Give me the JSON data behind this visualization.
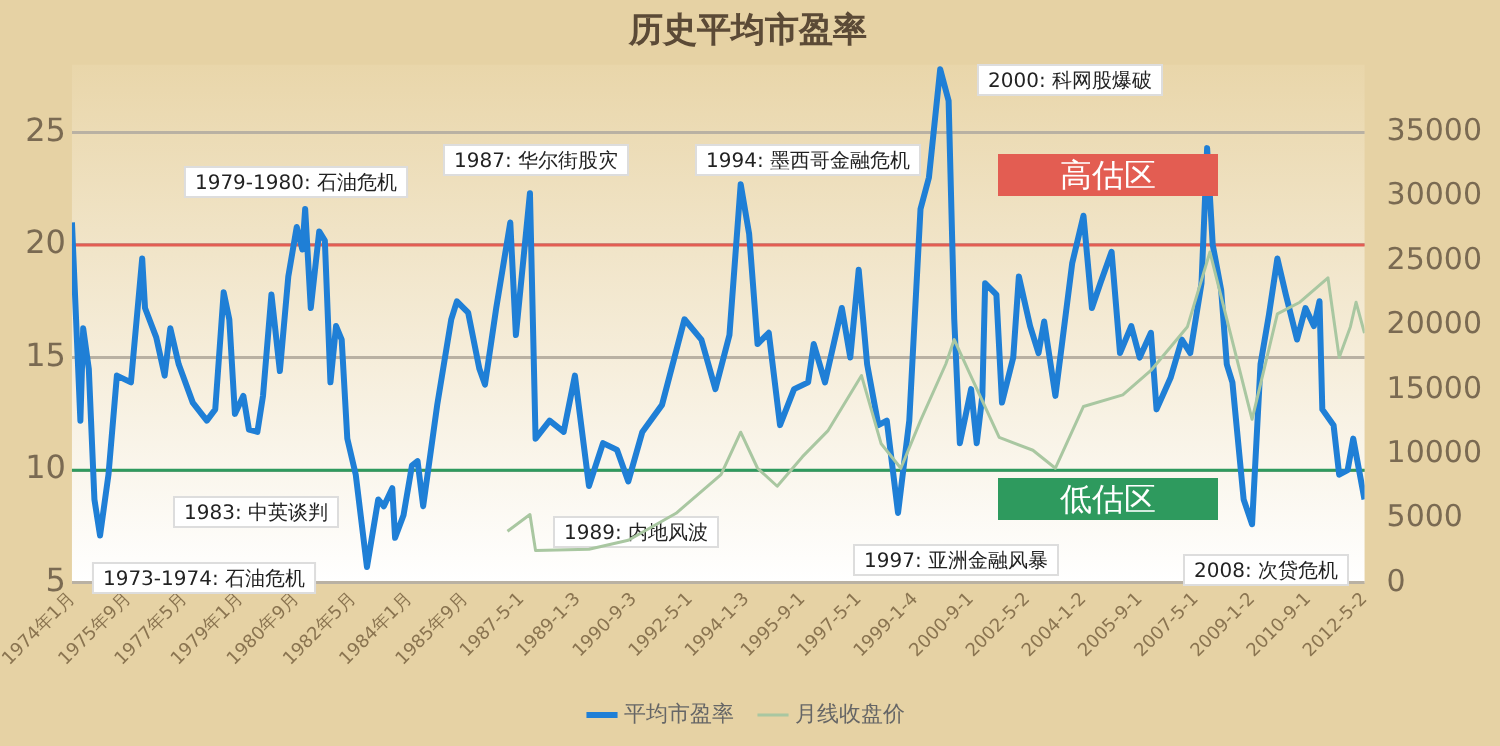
{
  "chart_data": {
    "type": "line",
    "title": "历史平均市盈率",
    "xlim": [
      "1974-01",
      "2012-05-02"
    ],
    "xticks": [
      {
        "value": "1974-01",
        "label": "1974年1月"
      },
      {
        "value": "1975-09",
        "label": "1975年9月"
      },
      {
        "value": "1977-05",
        "label": "1977年5月"
      },
      {
        "value": "1979-01",
        "label": "1979年1月"
      },
      {
        "value": "1980-09",
        "label": "1980年9月"
      },
      {
        "value": "1982-05",
        "label": "1982年5月"
      },
      {
        "value": "1984-01",
        "label": "1984年1月"
      },
      {
        "value": "1985-09",
        "label": "1985年9月"
      },
      {
        "value": "1987-05-01",
        "label": "1987-5-1"
      },
      {
        "value": "1989-01-03",
        "label": "1989-1-3"
      },
      {
        "value": "1990-09-03",
        "label": "1990-9-3"
      },
      {
        "value": "1992-05-01",
        "label": "1992-5-1"
      },
      {
        "value": "1994-01-03",
        "label": "1994-1-3"
      },
      {
        "value": "1995-09-01",
        "label": "1995-9-1"
      },
      {
        "value": "1997-05-01",
        "label": "1997-5-1"
      },
      {
        "value": "1999-01-04",
        "label": "1999-1-4"
      },
      {
        "value": "2000-09-01",
        "label": "2000-9-1"
      },
      {
        "value": "2002-05-02",
        "label": "2002-5-2"
      },
      {
        "value": "2004-01-02",
        "label": "2004-1-2"
      },
      {
        "value": "2005-09-01",
        "label": "2005-9-1"
      },
      {
        "value": "2007-05-01",
        "label": "2007-5-1"
      },
      {
        "value": "2009-01-02",
        "label": "2009-1-2"
      },
      {
        "value": "2010-09-01",
        "label": "2010-9-1"
      },
      {
        "value": "2012-05-02",
        "label": "2012-5-2"
      }
    ],
    "ylim": [
      5,
      28
    ],
    "yticks": [
      5,
      10,
      15,
      20,
      25
    ],
    "y2lim": [
      0,
      40250
    ],
    "y2ticks": [
      0,
      5000,
      10000,
      15000,
      20000,
      25000,
      30000,
      35000
    ],
    "grid": "y",
    "legend": "bottom",
    "marker": "none",
    "line_style": "solid",
    "ref_lines": [
      {
        "axis": "y",
        "value": 20,
        "label": "高估区",
        "color": "#e35d52"
      },
      {
        "axis": "y",
        "value": 10,
        "label": "低估区",
        "color": "#2e9a5e"
      }
    ],
    "annotations": [
      "1973-1974: 石油危机",
      "1979-1980: 石油危机",
      "1983: 中英谈判",
      "1987: 华尔街股灾",
      "1989: 内地风波",
      "1994: 墨西哥金融危机",
      "1997: 亚洲金融风暴",
      "2000: 科网股爆破",
      "2008: 次贷危机"
    ],
    "series": [
      {
        "name": "平均市盈率",
        "color": "#1f7fd6",
        "x": [
          "1974-01",
          "1974-04",
          "1974-05",
          "1974-07",
          "1974-09",
          "1974-11",
          "1975-02",
          "1975-05",
          "1975-10",
          "1976-02",
          "1976-03",
          "1976-07",
          "1976-10",
          "1976-12",
          "1977-03",
          "1977-08",
          "1978-01",
          "1978-04",
          "1978-07",
          "1978-09",
          "1978-11",
          "1979-02",
          "1979-04",
          "1979-07",
          "1979-09",
          "1979-12",
          "1980-03",
          "1980-06",
          "1980-09",
          "1980-11",
          "1980-12",
          "1981-02",
          "1981-05",
          "1981-07",
          "1981-09",
          "1981-11",
          "1982-01",
          "1982-03",
          "1982-06",
          "1982-10",
          "1983-02",
          "1983-04",
          "1983-07",
          "1983-08",
          "1983-11",
          "1984-02",
          "1984-04",
          "1984-06",
          "1984-11",
          "1985-04",
          "1985-06",
          "1985-10",
          "1986-02",
          "1986-04",
          "1986-08",
          "1987-01",
          "1987-03",
          "1987-08",
          "1987-10",
          "1988-03",
          "1988-08",
          "1988-12",
          "1989-05",
          "1989-10",
          "1990-03",
          "1990-07",
          "1990-12",
          "1991-07",
          "1992-03",
          "1992-09",
          "1993-02",
          "1993-07",
          "1993-11",
          "1994-02",
          "1994-05",
          "1994-09",
          "1995-01",
          "1995-06",
          "1995-11",
          "1996-01",
          "1996-05",
          "1996-11",
          "1997-02",
          "1997-05",
          "1997-08",
          "1997-12",
          "1998-03",
          "1998-07",
          "1998-11",
          "1999-03",
          "1999-06",
          "1999-10",
          "2000-01",
          "2000-03",
          "2000-05",
          "2000-09",
          "2000-11",
          "2001-01",
          "2001-02",
          "2001-06",
          "2001-08",
          "2001-12",
          "2002-02",
          "2002-06",
          "2002-09",
          "2002-11",
          "2003-03",
          "2003-09",
          "2004-01",
          "2004-04",
          "2004-07",
          "2004-11",
          "2005-02",
          "2005-06",
          "2005-09",
          "2006-01",
          "2006-03",
          "2006-08",
          "2006-12",
          "2007-03",
          "2007-07",
          "2007-09",
          "2007-11",
          "2008-02",
          "2008-04",
          "2008-06",
          "2008-10",
          "2009-01",
          "2009-04",
          "2009-07",
          "2009-10",
          "2010-01",
          "2010-05",
          "2010-08",
          "2010-11",
          "2011-01",
          "2011-02",
          "2011-06",
          "2011-08",
          "2011-11",
          "2012-01",
          "2012-05"
        ],
        "values": [
          21.0,
          12.2,
          16.3,
          14.5,
          8.7,
          7.1,
          9.8,
          14.2,
          13.9,
          19.4,
          17.2,
          15.9,
          14.2,
          16.3,
          14.7,
          13.0,
          12.2,
          12.7,
          17.9,
          16.7,
          12.5,
          13.3,
          11.8,
          11.7,
          13.3,
          17.8,
          14.4,
          18.6,
          20.8,
          19.8,
          21.6,
          17.2,
          20.6,
          20.2,
          13.9,
          16.4,
          15.8,
          11.4,
          9.8,
          5.7,
          8.7,
          8.4,
          9.2,
          7.0,
          8.0,
          10.2,
          10.4,
          8.4,
          12.9,
          16.7,
          17.5,
          17.0,
          14.5,
          13.8,
          17.2,
          21.0,
          16.0,
          22.3,
          11.4,
          12.2,
          11.7,
          14.2,
          9.3,
          11.2,
          10.9,
          9.5,
          11.7,
          12.9,
          16.7,
          15.8,
          13.6,
          16.0,
          22.7,
          20.5,
          15.6,
          16.1,
          12.0,
          13.6,
          13.9,
          15.6,
          13.9,
          17.2,
          15.0,
          18.9,
          14.7,
          12.0,
          12.2,
          8.1,
          12.2,
          21.6,
          23.0,
          27.8,
          26.4,
          16.7,
          11.2,
          13.6,
          11.2,
          13.3,
          18.3,
          17.8,
          13.0,
          15.0,
          18.6,
          16.4,
          15.2,
          16.6,
          13.3,
          19.2,
          21.3,
          17.2,
          18.3,
          19.7,
          15.2,
          16.4,
          15.0,
          16.1,
          12.7,
          14.1,
          15.8,
          15.2,
          18.3,
          24.3,
          20.0,
          18.0,
          14.7,
          13.9,
          8.7,
          7.6,
          14.7,
          16.9,
          19.4,
          17.8,
          15.8,
          17.2,
          16.4,
          17.5,
          12.7,
          12.0,
          9.8,
          10.0,
          11.4,
          8.7
        ]
      },
      {
        "name": "月线收盘价",
        "color": "#a9c7a1",
        "axis": "y2",
        "x": [
          "1986-12",
          "1987-08",
          "1987-10",
          "1989-05",
          "1990-07",
          "1991-12",
          "1993-04",
          "1993-11",
          "1994-05",
          "1994-12",
          "1995-09",
          "1996-06",
          "1997-06",
          "1998-01",
          "1998-08",
          "1999-03",
          "1999-12",
          "2000-03",
          "2000-08",
          "2001-07",
          "2002-07",
          "2003-03",
          "2004-01",
          "2005-03",
          "2006-01",
          "2007-02",
          "2007-10",
          "2009-01",
          "2009-10",
          "2010-06",
          "2011-04",
          "2011-08",
          "2011-12",
          "2012-02",
          "2012-05"
        ],
        "values": [
          4000,
          5300,
          2500,
          2600,
          3300,
          5400,
          8400,
          11700,
          8900,
          7500,
          9800,
          11800,
          16100,
          10800,
          8900,
          12600,
          17000,
          18900,
          16500,
          11300,
          10300,
          8900,
          13700,
          14600,
          16500,
          19900,
          25700,
          12700,
          20900,
          21800,
          23700,
          17500,
          19900,
          21800,
          19400
        ]
      }
    ]
  }
}
